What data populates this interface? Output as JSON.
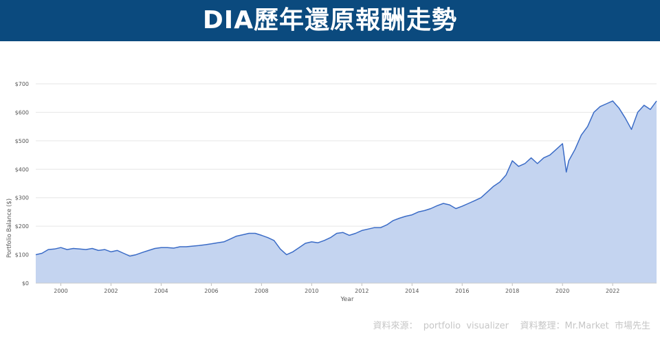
{
  "header": {
    "title": "DIA歷年還原報酬走勢"
  },
  "footer": {
    "source": "資料來源：  portfolio  visualizer    資料整理：Mr.Market  市場先生"
  },
  "colors": {
    "banner": "#0b4a7e",
    "line": "#3a6bc6",
    "area": "#c4d4f0",
    "grid": "#e6e6e6"
  },
  "chart_data": {
    "type": "area",
    "xlabel": "Year",
    "ylabel": "Portfolio Balance ($)",
    "xlim": [
      1999,
      2023.75
    ],
    "ylim": [
      0,
      700
    ],
    "x_ticks": [
      2000,
      2002,
      2004,
      2006,
      2008,
      2010,
      2012,
      2014,
      2016,
      2018,
      2020,
      2022
    ],
    "x_tick_labels": [
      "2000",
      "2002",
      "2004",
      "2006",
      "2008",
      "2010",
      "2012",
      "2014",
      "2016",
      "2018",
      "2020",
      "2022"
    ],
    "y_ticks": [
      0,
      100,
      200,
      300,
      400,
      500,
      600,
      700
    ],
    "y_tick_labels": [
      "$0",
      "$100",
      "$200",
      "$300",
      "$400",
      "$500",
      "$600",
      "$700"
    ],
    "grid": true,
    "series": [
      {
        "x": [
          1999.0,
          1999.25,
          1999.5,
          1999.75,
          2000.0,
          2000.25,
          2000.5,
          2000.75,
          2001.0,
          2001.25,
          2001.5,
          2001.75,
          2002.0,
          2002.25,
          2002.5,
          2002.75,
          2003.0,
          2003.25,
          2003.5,
          2003.75,
          2004.0,
          2004.25,
          2004.5,
          2004.75,
          2005.0,
          2005.25,
          2005.5,
          2005.75,
          2006.0,
          2006.25,
          2006.5,
          2006.75,
          2007.0,
          2007.25,
          2007.5,
          2007.75,
          2008.0,
          2008.25,
          2008.5,
          2008.75,
          2009.0,
          2009.25,
          2009.5,
          2009.75,
          2010.0,
          2010.25,
          2010.5,
          2010.75,
          2011.0,
          2011.25,
          2011.5,
          2011.75,
          2012.0,
          2012.25,
          2012.5,
          2012.75,
          2013.0,
          2013.25,
          2013.5,
          2013.75,
          2014.0,
          2014.25,
          2014.5,
          2014.75,
          2015.0,
          2015.25,
          2015.5,
          2015.75,
          2016.0,
          2016.25,
          2016.5,
          2016.75,
          2017.0,
          2017.25,
          2017.5,
          2017.75,
          2018.0,
          2018.25,
          2018.5,
          2018.75,
          2019.0,
          2019.25,
          2019.5,
          2019.75,
          2020.0,
          2020.15,
          2020.25,
          2020.5,
          2020.75,
          2021.0,
          2021.25,
          2021.5,
          2021.75,
          2022.0,
          2022.25,
          2022.5,
          2022.75,
          2023.0,
          2023.25,
          2023.5,
          2023.75
        ],
        "values": [
          100,
          105,
          118,
          120,
          125,
          118,
          122,
          120,
          118,
          122,
          115,
          118,
          110,
          115,
          105,
          95,
          100,
          108,
          115,
          122,
          125,
          125,
          123,
          128,
          128,
          130,
          132,
          135,
          138,
          142,
          145,
          155,
          165,
          170,
          175,
          175,
          168,
          160,
          150,
          120,
          100,
          110,
          125,
          140,
          145,
          142,
          150,
          160,
          175,
          178,
          168,
          175,
          185,
          190,
          195,
          195,
          205,
          220,
          228,
          235,
          240,
          250,
          255,
          262,
          272,
          280,
          275,
          262,
          270,
          280,
          290,
          300,
          320,
          340,
          355,
          380,
          430,
          410,
          420,
          440,
          420,
          440,
          450,
          470,
          490,
          390,
          430,
          470,
          520,
          550,
          600,
          620,
          630,
          640,
          615,
          580,
          540,
          600,
          625,
          610,
          640
        ]
      }
    ]
  }
}
